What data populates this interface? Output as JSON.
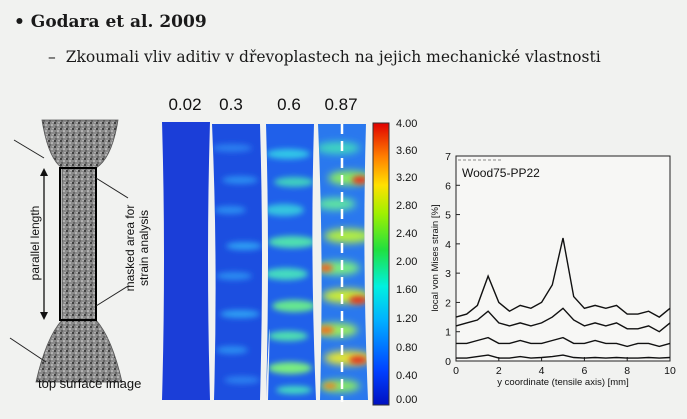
{
  "slide": {
    "bullet_title": "Godara et al. 2009",
    "bullet_subtitle": "Zkoumali vliv aditiv v dřevoplastech na jejich mechanické vlastnosti"
  },
  "specimen": {
    "parallel_length_label": "parallel length",
    "masked_area_label_1": "masked area for",
    "masked_area_label_2": "strain analysis",
    "caption": "top surface image"
  },
  "strain_maps": {
    "strain_levels": [
      "0.02",
      "0.3",
      "0.6",
      "0.87"
    ],
    "colorbar_ticks": [
      "4.00",
      "3.60",
      "3.20",
      "2.80",
      "2.40",
      "2.00",
      "1.60",
      "1.20",
      "0.80",
      "0.40",
      "0.00"
    ]
  },
  "chart_data": {
    "type": "line",
    "legend": "Wood75-PP22",
    "xlabel": "y coordinate (tensile axis) [mm]",
    "ylabel": "local von Mises strain [%]",
    "xlim": [
      0,
      10
    ],
    "ylim": [
      0,
      7
    ],
    "xticks": [
      "0",
      "2",
      "4",
      "6",
      "8",
      "10"
    ],
    "yticks": [
      "0",
      "1",
      "2",
      "3",
      "4",
      "5",
      "6",
      "7"
    ],
    "x": [
      0,
      0.5,
      1,
      1.5,
      2,
      2.5,
      3,
      3.5,
      4,
      4.5,
      5,
      5.5,
      6,
      6.5,
      7,
      7.5,
      8,
      8.5,
      9,
      9.5,
      10
    ],
    "series": [
      {
        "values": [
          1.5,
          1.6,
          1.9,
          2.9,
          2.0,
          1.7,
          1.9,
          1.8,
          2.0,
          2.6,
          4.2,
          2.2,
          1.8,
          1.9,
          1.8,
          1.9,
          1.6,
          1.6,
          1.7,
          1.5,
          1.8
        ]
      },
      {
        "values": [
          1.2,
          1.3,
          1.4,
          1.7,
          1.3,
          1.2,
          1.3,
          1.2,
          1.3,
          1.5,
          1.8,
          1.4,
          1.2,
          1.3,
          1.2,
          1.3,
          1.1,
          1.1,
          1.2,
          1.0,
          1.3
        ]
      },
      {
        "values": [
          0.6,
          0.6,
          0.7,
          0.8,
          0.6,
          0.6,
          0.7,
          0.6,
          0.6,
          0.7,
          0.8,
          0.6,
          0.6,
          0.7,
          0.6,
          0.6,
          0.5,
          0.6,
          0.6,
          0.5,
          0.6
        ]
      },
      {
        "values": [
          0.1,
          0.1,
          0.15,
          0.2,
          0.1,
          0.1,
          0.15,
          0.1,
          0.12,
          0.15,
          0.2,
          0.12,
          0.1,
          0.12,
          0.1,
          0.12,
          0.1,
          0.1,
          0.12,
          0.1,
          0.12
        ]
      }
    ]
  }
}
